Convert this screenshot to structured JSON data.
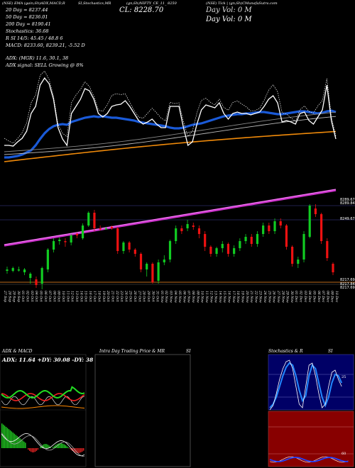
{
  "header": {
    "title_left": "(NSE) EMA (gain;Sh)ADX,MACD,R",
    "title_mid": "SI,Stochastics,MR",
    "title_sym": "(gn;Sh)NIFTY_CE_11_ 8250",
    "title_right": "(NSE) Tick | (gn;Sh)CMunafaSutra.com",
    "ma20": "20 Day = 8237.44",
    "ma50": "50 Day = 8236.01",
    "ma200": "200 Day = 8190.41",
    "close": "CL: 8228.70",
    "day_vol": "Day Vol: 0   M",
    "stochastics": "Stochastics: 36.68",
    "rsi": "R                  SI 14/5: 45.45 / 48.8            6",
    "macd": "MACD: 8233.60,  8239.21, -5.52  D",
    "adx": "ADX:                                (MGR) 11.6,  30.1,  38",
    "adx_signal": "ADX  signal: SELL Growing @ 8%"
  },
  "panels": {
    "adx_macd_title": "ADX  & MACD",
    "intra_title": "Intra  Day Trading Price  & MR",
    "intra_si": "SI",
    "stoch_title": "Stochastics & R",
    "stoch_si": "SI",
    "adx_readout": "ADX: 11.64  +DY: 30.08  -DY: 38",
    "stoch_tick_25": "25",
    "rsi_tick_60": "60"
  },
  "chart_data": {
    "type": "candlestick",
    "categories": [
      "27 Sep",
      "28 Sep",
      "29 Sep",
      "30 Sep",
      "01 Oct",
      "02 Oct",
      "03 Oct",
      "04 Oct",
      "05 Oct",
      "06 Oct",
      "07 Oct",
      "08 Oct",
      "09 Oct",
      "10 Oct",
      "11 Oct",
      "12 Oct",
      "13 Oct",
      "14 Oct",
      "15 Oct",
      "16 Oct",
      "17 Oct",
      "18 Oct",
      "19 Oct",
      "20 Oct",
      "21 Oct",
      "22 Oct",
      "23 Oct",
      "24 Oct",
      "25 Oct",
      "26 Oct",
      "27 Oct",
      "28 Oct",
      "29 Oct",
      "30 Oct",
      "31 Oct",
      "01 Nov",
      "02 Nov",
      "03 Nov",
      "04 Nov",
      "05 Nov",
      "06 Nov",
      "07 Nov",
      "08 Nov",
      "09 Nov",
      "10 Nov",
      "11 Nov",
      "12 Nov",
      "13 Nov",
      "14 Nov",
      "15 Nov",
      "16 Nov",
      "17 Nov",
      "18 Nov",
      "19 Nov",
      "20 Nov",
      "21 Nov",
      "22 Nov",
      "23 Nov",
      "24 Nov",
      "25 Nov",
      "26 Nov",
      "27 Nov",
      "28 Nov",
      "29 Nov",
      "30 Nov",
      "01 Dec",
      "02 Dec",
      "03 Dec",
      "04 Dec",
      "05 Dec",
      "06 Dec",
      "07 Dec",
      "08 Dec",
      "09 Dec",
      "10 Dec"
    ],
    "price_labels": [
      "8289.67",
      "8289.84",
      "8249.67",
      "8217.69",
      "8217.84",
      "8217.69"
    ],
    "price_label_values": [
      8289.67,
      8287.5,
      8249.67,
      8217.69,
      8214.5,
      8211.0
    ],
    "y_range": [
      8208,
      8300
    ]
  }
}
